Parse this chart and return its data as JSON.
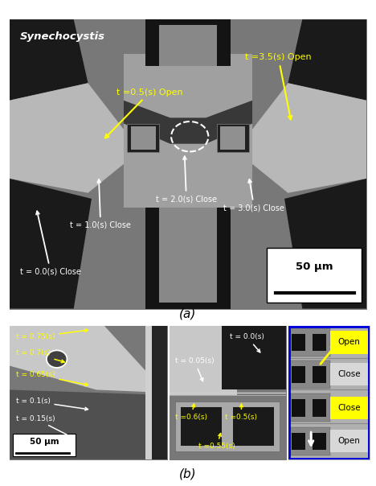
{
  "fig_width": 4.68,
  "fig_height": 6.04,
  "dpi": 100,
  "background_color": "#ffffff",
  "outer_border_color": "#cccccc",
  "panel_a": {
    "bg_mid": "#909090",
    "bg_dark": "#181818",
    "bg_light": "#c8c8c8",
    "synechocystis_text": "Synechocystis",
    "scalebar_text": "50 μm"
  },
  "panel_b": {
    "title": "(b)",
    "scalebar_text": "50 μm",
    "right_border_color": "#0000ee",
    "right_labels": [
      "Open",
      "Close",
      "Close",
      "Open"
    ],
    "right_label_colors_bg": [
      "#ffff00",
      "#d0d0d0",
      "#ffff00",
      "#d0d0d0"
    ]
  }
}
